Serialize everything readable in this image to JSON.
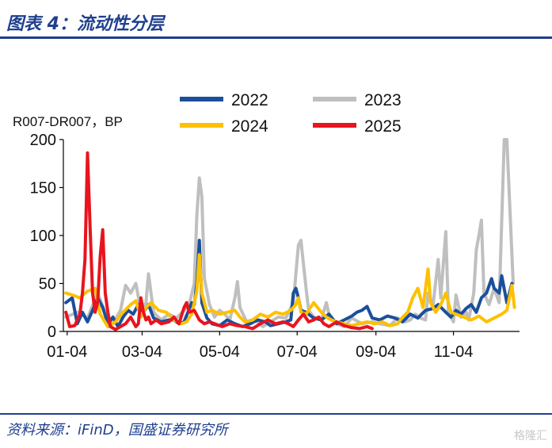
{
  "header": {
    "title": "图表 4：流动性分层"
  },
  "footer": {
    "source": "资料来源：iFinD，国盛证券研究所"
  },
  "watermark": "格隆汇",
  "colors": {
    "title_blue": "#1f3f8f",
    "2022": "#1b4f9c",
    "2023": "#bfbfbf",
    "2024": "#ffc000",
    "2025": "#e8141e"
  },
  "chart_data": {
    "type": "line",
    "ylabel": "R007-DR007，BP",
    "ylim": [
      0,
      200
    ],
    "yticks": [
      0,
      50,
      100,
      150,
      200
    ],
    "xlim": [
      1,
      360
    ],
    "xticks": [
      {
        "label": "01-04",
        "day": 4
      },
      {
        "label": "03-04",
        "day": 63
      },
      {
        "label": "05-04",
        "day": 124
      },
      {
        "label": "07-04",
        "day": 185
      },
      {
        "label": "09-04",
        "day": 247
      },
      {
        "label": "11-04",
        "day": 308
      }
    ],
    "legend_position": "top",
    "series": [
      {
        "name": "2023",
        "points": [
          [
            3,
            15
          ],
          [
            12,
            20
          ],
          [
            20,
            14
          ],
          [
            28,
            40
          ],
          [
            34,
            20
          ],
          [
            40,
            8
          ],
          [
            46,
            22
          ],
          [
            50,
            48
          ],
          [
            54,
            40
          ],
          [
            58,
            50
          ],
          [
            62,
            22
          ],
          [
            66,
            30
          ],
          [
            68,
            60
          ],
          [
            72,
            20
          ],
          [
            78,
            12
          ],
          [
            84,
            18
          ],
          [
            90,
            14
          ],
          [
            96,
            22
          ],
          [
            100,
            28
          ],
          [
            104,
            50
          ],
          [
            106,
            120
          ],
          [
            108,
            160
          ],
          [
            110,
            140
          ],
          [
            112,
            55
          ],
          [
            116,
            28
          ],
          [
            120,
            15
          ],
          [
            124,
            22
          ],
          [
            128,
            18
          ],
          [
            132,
            12
          ],
          [
            136,
            35
          ],
          [
            138,
            52
          ],
          [
            140,
            25
          ],
          [
            146,
            8
          ],
          [
            152,
            12
          ],
          [
            158,
            5
          ],
          [
            164,
            10
          ],
          [
            170,
            15
          ],
          [
            176,
            14
          ],
          [
            182,
            30
          ],
          [
            184,
            60
          ],
          [
            186,
            90
          ],
          [
            188,
            95
          ],
          [
            190,
            70
          ],
          [
            192,
            45
          ],
          [
            194,
            22
          ],
          [
            198,
            15
          ],
          [
            204,
            12
          ],
          [
            208,
            30
          ],
          [
            210,
            18
          ],
          [
            216,
            8
          ],
          [
            222,
            5
          ],
          [
            228,
            14
          ],
          [
            236,
            8
          ],
          [
            244,
            10
          ],
          [
            250,
            8
          ],
          [
            258,
            6
          ],
          [
            264,
            14
          ],
          [
            270,
            10
          ],
          [
            274,
            12
          ],
          [
            278,
            18
          ],
          [
            282,
            14
          ],
          [
            286,
            12
          ],
          [
            288,
            40
          ],
          [
            292,
            28
          ],
          [
            296,
            75
          ],
          [
            298,
            35
          ],
          [
            302,
            104
          ],
          [
            304,
            20
          ],
          [
            308,
            10
          ],
          [
            310,
            38
          ],
          [
            314,
            15
          ],
          [
            318,
            20
          ],
          [
            320,
            12
          ],
          [
            324,
            40
          ],
          [
            326,
            85
          ],
          [
            328,
            100
          ],
          [
            330,
            116
          ],
          [
            332,
            40
          ],
          [
            336,
            28
          ],
          [
            340,
            45
          ],
          [
            344,
            30
          ],
          [
            348,
            200
          ],
          [
            350,
            200
          ],
          [
            353,
            110
          ],
          [
            355,
            50
          ]
        ]
      },
      {
        "name": "2022",
        "points": [
          [
            3,
            30
          ],
          [
            8,
            35
          ],
          [
            12,
            8
          ],
          [
            16,
            20
          ],
          [
            20,
            10
          ],
          [
            24,
            22
          ],
          [
            28,
            35
          ],
          [
            32,
            25
          ],
          [
            36,
            8
          ],
          [
            40,
            15
          ],
          [
            44,
            5
          ],
          [
            48,
            15
          ],
          [
            52,
            22
          ],
          [
            56,
            18
          ],
          [
            60,
            28
          ],
          [
            64,
            20
          ],
          [
            68,
            28
          ],
          [
            72,
            14
          ],
          [
            78,
            10
          ],
          [
            84,
            12
          ],
          [
            88,
            12
          ],
          [
            92,
            8
          ],
          [
            96,
            10
          ],
          [
            102,
            30
          ],
          [
            104,
            28
          ],
          [
            106,
            50
          ],
          [
            108,
            95
          ],
          [
            110,
            30
          ],
          [
            114,
            14
          ],
          [
            118,
            8
          ],
          [
            124,
            6
          ],
          [
            130,
            12
          ],
          [
            136,
            8
          ],
          [
            142,
            5
          ],
          [
            148,
            8
          ],
          [
            154,
            12
          ],
          [
            160,
            10
          ],
          [
            164,
            6
          ],
          [
            170,
            8
          ],
          [
            176,
            10
          ],
          [
            180,
            12
          ],
          [
            182,
            40
          ],
          [
            184,
            45
          ],
          [
            186,
            35
          ],
          [
            188,
            22
          ],
          [
            192,
            20
          ],
          [
            198,
            14
          ],
          [
            204,
            12
          ],
          [
            210,
            18
          ],
          [
            216,
            8
          ],
          [
            222,
            12
          ],
          [
            228,
            16
          ],
          [
            232,
            20
          ],
          [
            236,
            22
          ],
          [
            240,
            26
          ],
          [
            244,
            14
          ],
          [
            250,
            12
          ],
          [
            256,
            16
          ],
          [
            262,
            14
          ],
          [
            268,
            10
          ],
          [
            274,
            18
          ],
          [
            280,
            14
          ],
          [
            286,
            22
          ],
          [
            292,
            24
          ],
          [
            296,
            28
          ],
          [
            302,
            20
          ],
          [
            306,
            15
          ],
          [
            310,
            22
          ],
          [
            314,
            18
          ],
          [
            318,
            24
          ],
          [
            322,
            28
          ],
          [
            326,
            20
          ],
          [
            330,
            35
          ],
          [
            334,
            40
          ],
          [
            338,
            55
          ],
          [
            340,
            45
          ],
          [
            344,
            40
          ],
          [
            346,
            58
          ],
          [
            350,
            30
          ],
          [
            354,
            50
          ]
        ]
      },
      {
        "name": "2024",
        "points": [
          [
            3,
            40
          ],
          [
            8,
            38
          ],
          [
            14,
            35
          ],
          [
            20,
            42
          ],
          [
            26,
            45
          ],
          [
            30,
            18
          ],
          [
            36,
            5
          ],
          [
            42,
            10
          ],
          [
            48,
            20
          ],
          [
            54,
            28
          ],
          [
            58,
            32
          ],
          [
            62,
            15
          ],
          [
            66,
            25
          ],
          [
            70,
            30
          ],
          [
            76,
            22
          ],
          [
            82,
            20
          ],
          [
            88,
            12
          ],
          [
            94,
            8
          ],
          [
            98,
            10
          ],
          [
            102,
            18
          ],
          [
            106,
            42
          ],
          [
            108,
            80
          ],
          [
            110,
            40
          ],
          [
            114,
            20
          ],
          [
            118,
            22
          ],
          [
            124,
            18
          ],
          [
            130,
            20
          ],
          [
            136,
            22
          ],
          [
            140,
            15
          ],
          [
            144,
            10
          ],
          [
            150,
            12
          ],
          [
            156,
            18
          ],
          [
            162,
            15
          ],
          [
            168,
            20
          ],
          [
            174,
            18
          ],
          [
            180,
            22
          ],
          [
            184,
            28
          ],
          [
            186,
            35
          ],
          [
            188,
            20
          ],
          [
            192,
            18
          ],
          [
            198,
            30
          ],
          [
            204,
            20
          ],
          [
            208,
            15
          ],
          [
            212,
            12
          ],
          [
            216,
            10
          ],
          [
            222,
            8
          ],
          [
            228,
            6
          ],
          [
            234,
            8
          ],
          [
            240,
            10
          ],
          [
            246,
            8
          ],
          [
            252,
            10
          ],
          [
            258,
            6
          ],
          [
            264,
            8
          ],
          [
            268,
            15
          ],
          [
            272,
            20
          ],
          [
            276,
            35
          ],
          [
            280,
            45
          ],
          [
            284,
            25
          ],
          [
            288,
            65
          ],
          [
            290,
            30
          ],
          [
            294,
            20
          ],
          [
            298,
            28
          ],
          [
            302,
            40
          ],
          [
            306,
            20
          ],
          [
            310,
            18
          ],
          [
            316,
            15
          ],
          [
            322,
            12
          ],
          [
            328,
            16
          ],
          [
            334,
            10
          ],
          [
            340,
            14
          ],
          [
            346,
            18
          ],
          [
            350,
            22
          ],
          [
            354,
            48
          ],
          [
            356,
            25
          ]
        ]
      },
      {
        "name": "2025",
        "points": [
          [
            3,
            20
          ],
          [
            6,
            5
          ],
          [
            10,
            6
          ],
          [
            14,
            18
          ],
          [
            16,
            40
          ],
          [
            18,
            75
          ],
          [
            20,
            186
          ],
          [
            22,
            110
          ],
          [
            24,
            40
          ],
          [
            26,
            20
          ],
          [
            28,
            30
          ],
          [
            30,
            78
          ],
          [
            32,
            106
          ],
          [
            34,
            40
          ],
          [
            36,
            20
          ],
          [
            38,
            5
          ],
          [
            42,
            2
          ],
          [
            46,
            5
          ],
          [
            50,
            8
          ],
          [
            54,
            15
          ],
          [
            58,
            5
          ],
          [
            60,
            8
          ],
          [
            62,
            35
          ],
          [
            64,
            20
          ],
          [
            66,
            12
          ],
          [
            68,
            15
          ],
          [
            70,
            8
          ],
          [
            74,
            12
          ],
          [
            78,
            8
          ],
          [
            84,
            10
          ],
          [
            88,
            15
          ],
          [
            92,
            8
          ],
          [
            96,
            25
          ],
          [
            98,
            30
          ],
          [
            100,
            20
          ],
          [
            104,
            22
          ],
          [
            108,
            12
          ],
          [
            112,
            8
          ],
          [
            116,
            10
          ],
          [
            120,
            8
          ],
          [
            126,
            5
          ],
          [
            132,
            8
          ],
          [
            138,
            6
          ],
          [
            144,
            5
          ],
          [
            150,
            3
          ],
          [
            156,
            8
          ],
          [
            162,
            12
          ],
          [
            168,
            8
          ],
          [
            174,
            10
          ],
          [
            178,
            8
          ],
          [
            182,
            5
          ],
          [
            186,
            12
          ],
          [
            190,
            18
          ],
          [
            194,
            10
          ],
          [
            198,
            12
          ],
          [
            202,
            15
          ],
          [
            206,
            8
          ],
          [
            210,
            5
          ],
          [
            216,
            10
          ],
          [
            222,
            6
          ],
          [
            228,
            4
          ],
          [
            234,
            3
          ],
          [
            240,
            5
          ],
          [
            244,
            3
          ]
        ]
      }
    ],
    "legend": [
      {
        "name": "2022",
        "color": "#1b4f9c"
      },
      {
        "name": "2023",
        "color": "#bfbfbf"
      },
      {
        "name": "2024",
        "color": "#ffc000"
      },
      {
        "name": "2025",
        "color": "#e8141e"
      }
    ]
  }
}
